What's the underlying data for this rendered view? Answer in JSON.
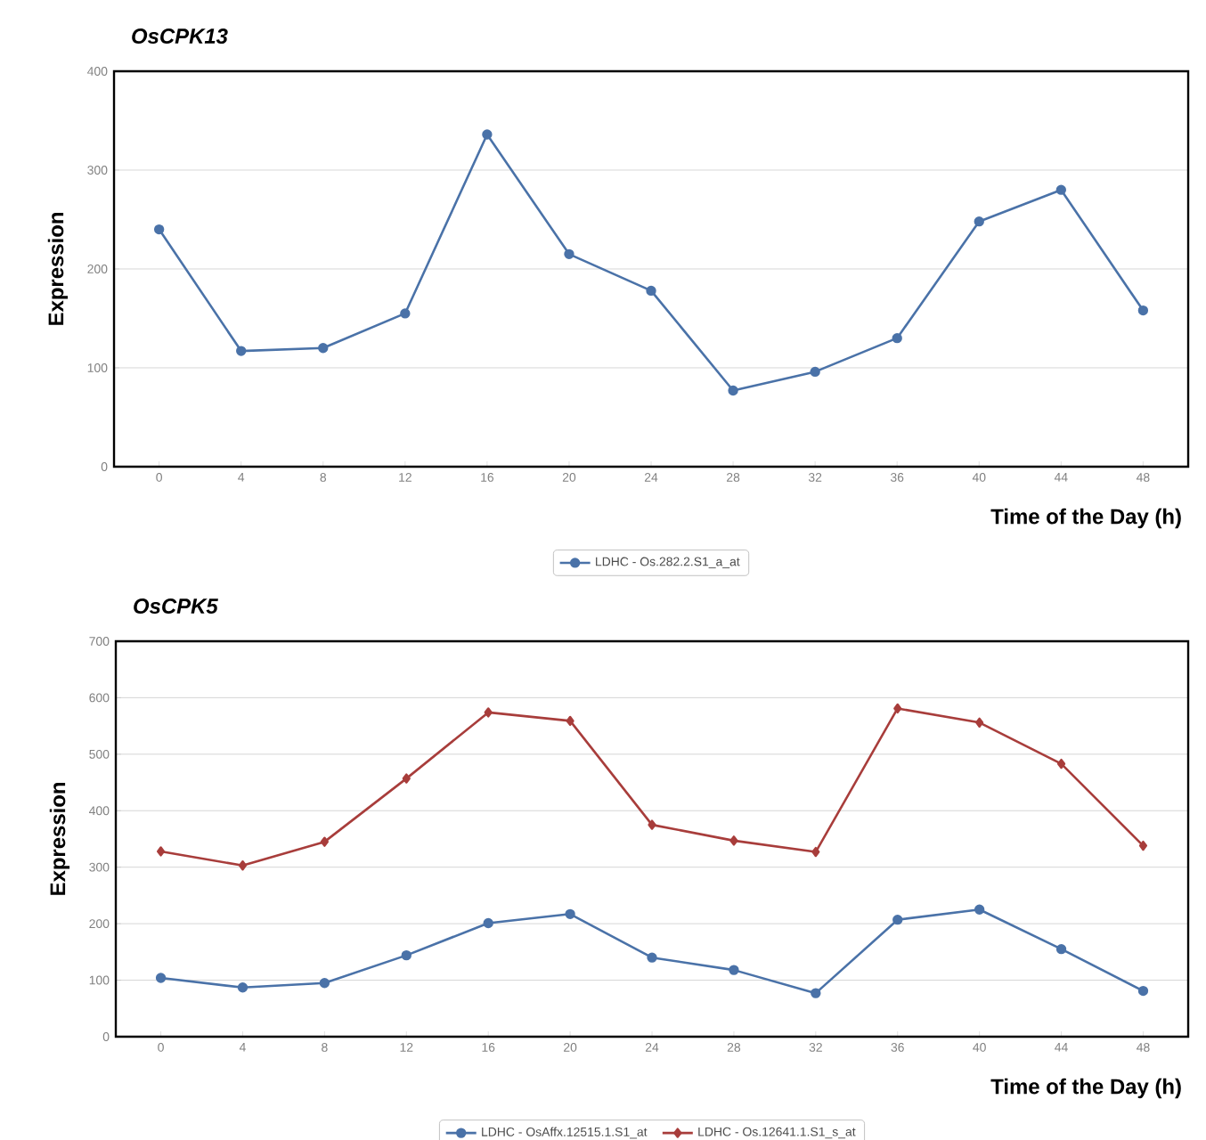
{
  "chart_data": [
    {
      "type": "line",
      "title": "OsCPK13",
      "xlabel": "Time of the Day (h)",
      "ylabel": "Expression",
      "categories": [
        "0",
        "4",
        "8",
        "12",
        "16",
        "20",
        "24",
        "28",
        "32",
        "36",
        "40",
        "44",
        "48"
      ],
      "series": [
        {
          "name": "LDHC - Os.282.2.S1_a_at",
          "color": "#4a72a8",
          "marker": "circle",
          "values": [
            240,
            117,
            120,
            155,
            336,
            215,
            178,
            77,
            96,
            130,
            248,
            280,
            158
          ]
        }
      ],
      "ylim": [
        0,
        400
      ],
      "yticks": [
        0,
        100,
        200,
        300,
        400
      ],
      "grid": "y",
      "legend": "bottom",
      "line_style": "solid"
    },
    {
      "type": "line",
      "title": "OsCPK5",
      "xlabel": "Time of the Day (h)",
      "ylabel": "Expression",
      "categories": [
        "0",
        "4",
        "8",
        "12",
        "16",
        "20",
        "24",
        "28",
        "32",
        "36",
        "40",
        "44",
        "48"
      ],
      "series": [
        {
          "name": "LDHC - OsAffx.12515.1.S1_at",
          "color": "#4a72a8",
          "marker": "circle",
          "values": [
            104,
            87,
            95,
            144,
            201,
            217,
            140,
            118,
            77,
            207,
            225,
            155,
            81
          ]
        },
        {
          "name": "LDHC - Os.12641.1.S1_s_at",
          "color": "#a83d3b",
          "marker": "diamond",
          "values": [
            328,
            303,
            345,
            457,
            574,
            559,
            375,
            347,
            327,
            581,
            556,
            483,
            338
          ]
        }
      ],
      "ylim": [
        0,
        700
      ],
      "yticks": [
        0,
        100,
        200,
        300,
        400,
        500,
        600,
        700
      ],
      "grid": "y",
      "legend": "bottom",
      "line_style": "solid"
    }
  ]
}
